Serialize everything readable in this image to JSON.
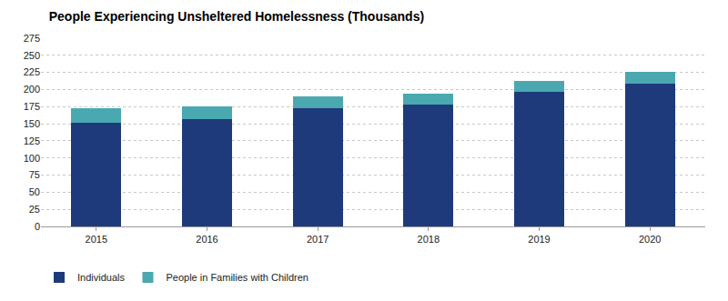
{
  "chart_data": {
    "type": "bar",
    "title": "People Experiencing Unsheltered Homelessness (Thousands)",
    "categories": [
      "2015",
      "2016",
      "2017",
      "2018",
      "2019",
      "2020"
    ],
    "series": [
      {
        "name": "Individuals",
        "color": "#1f3a7a",
        "values": [
          152,
          157,
          173,
          178,
          197,
          209
        ]
      },
      {
        "name": "People in Families with Children",
        "color": "#4aa8b0",
        "values": [
          21,
          19,
          17,
          16,
          15,
          17
        ]
      }
    ],
    "ylim": [
      0,
      275
    ],
    "yticks": [
      0,
      25,
      50,
      75,
      100,
      125,
      150,
      175,
      200,
      225,
      250,
      275
    ],
    "stacked": true,
    "grid": true,
    "legend": "bottom-left"
  }
}
